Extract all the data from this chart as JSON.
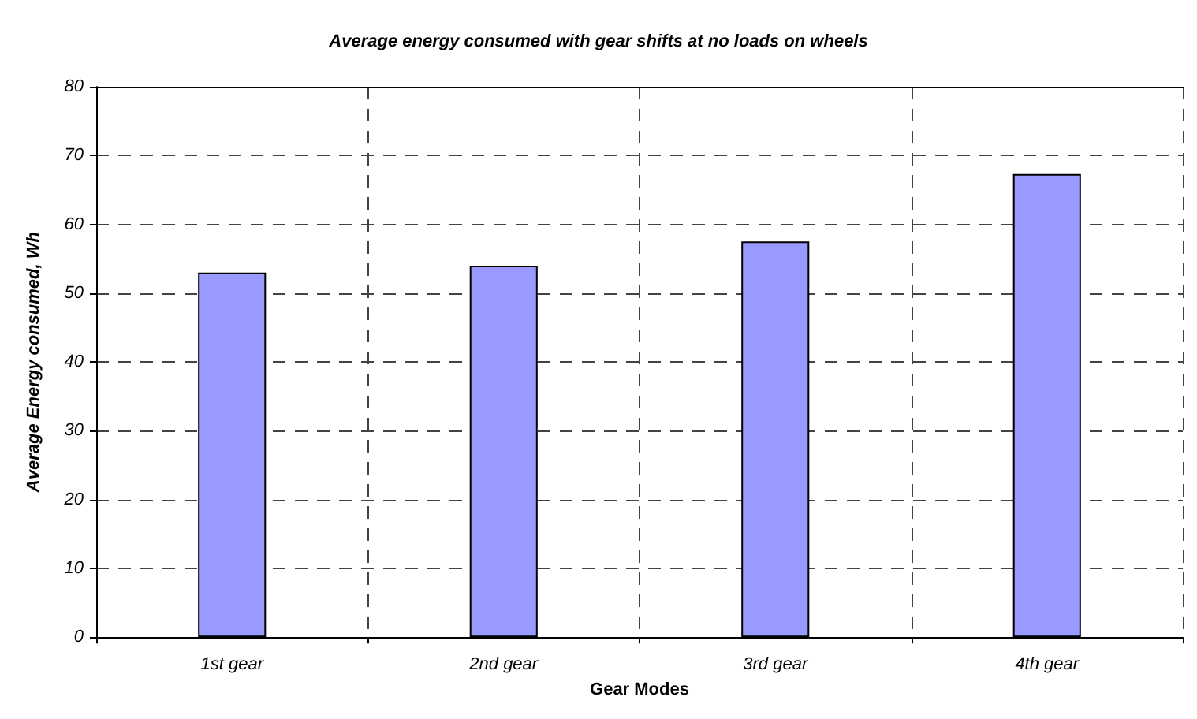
{
  "chart_data": {
    "type": "bar",
    "title": "Average energy consumed with gear shifts at no loads on wheels",
    "xlabel": "Gear Modes",
    "ylabel": "Average Energy consumed, Wh",
    "categories": [
      "1st gear",
      "2nd gear",
      "3rd gear",
      "4th gear"
    ],
    "values": [
      53,
      54,
      57.5,
      67.3
    ],
    "color": "#9999ff",
    "ylim": [
      0,
      80
    ],
    "yticks": [
      0,
      10,
      20,
      30,
      40,
      50,
      60,
      70,
      80
    ],
    "grid": true
  }
}
